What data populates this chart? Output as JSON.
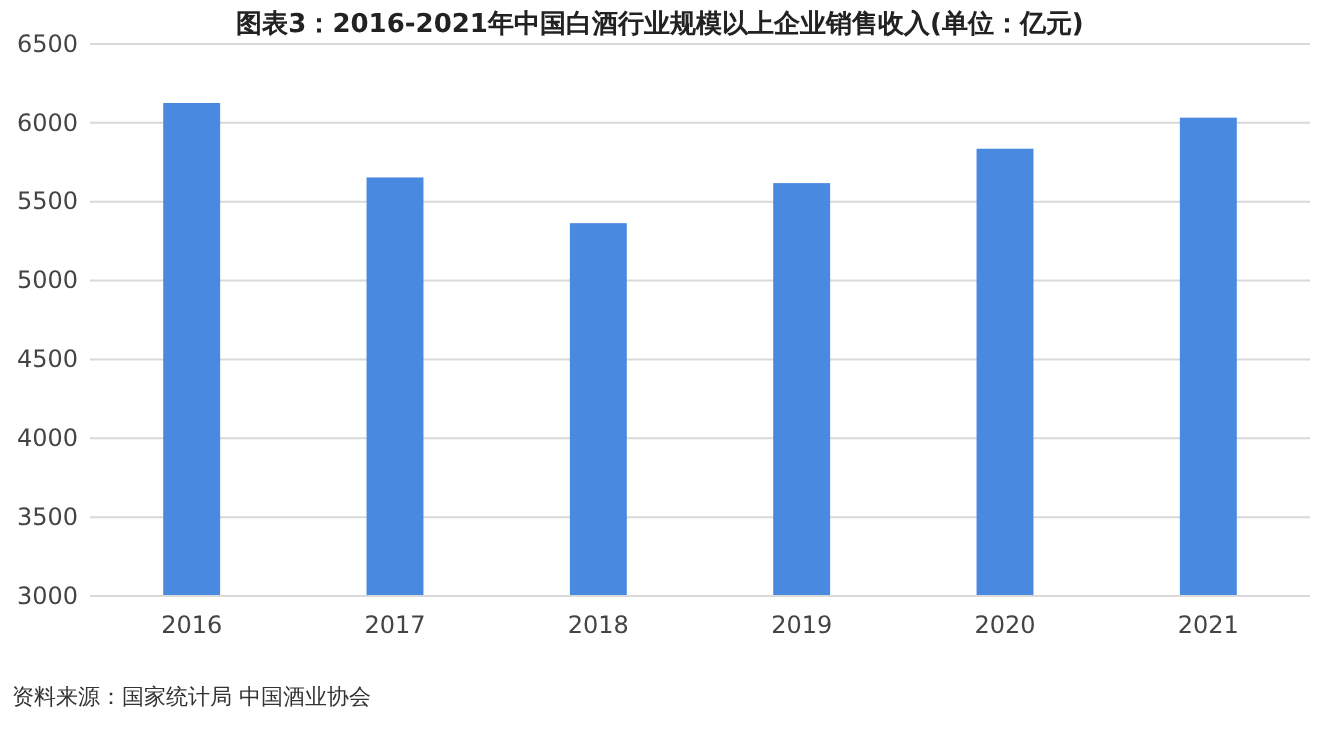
{
  "chart_data": {
    "type": "bar",
    "title": "图表3：2016-2021年中国白酒行业规模以上企业销售收入(单位：亿元)",
    "categories": [
      "2016",
      "2017",
      "2018",
      "2019",
      "2020",
      "2021"
    ],
    "values": [
      6126,
      5654,
      5364,
      5618,
      5836,
      6033
    ],
    "color": "#4a89e0",
    "ylim": [
      3000,
      6500
    ],
    "yticks": [
      3000,
      3500,
      4000,
      4500,
      5000,
      5500,
      6000,
      6500
    ],
    "grid": "y",
    "annotations": [
      "资料来源：国家统计局 中国酒业协会"
    ]
  }
}
